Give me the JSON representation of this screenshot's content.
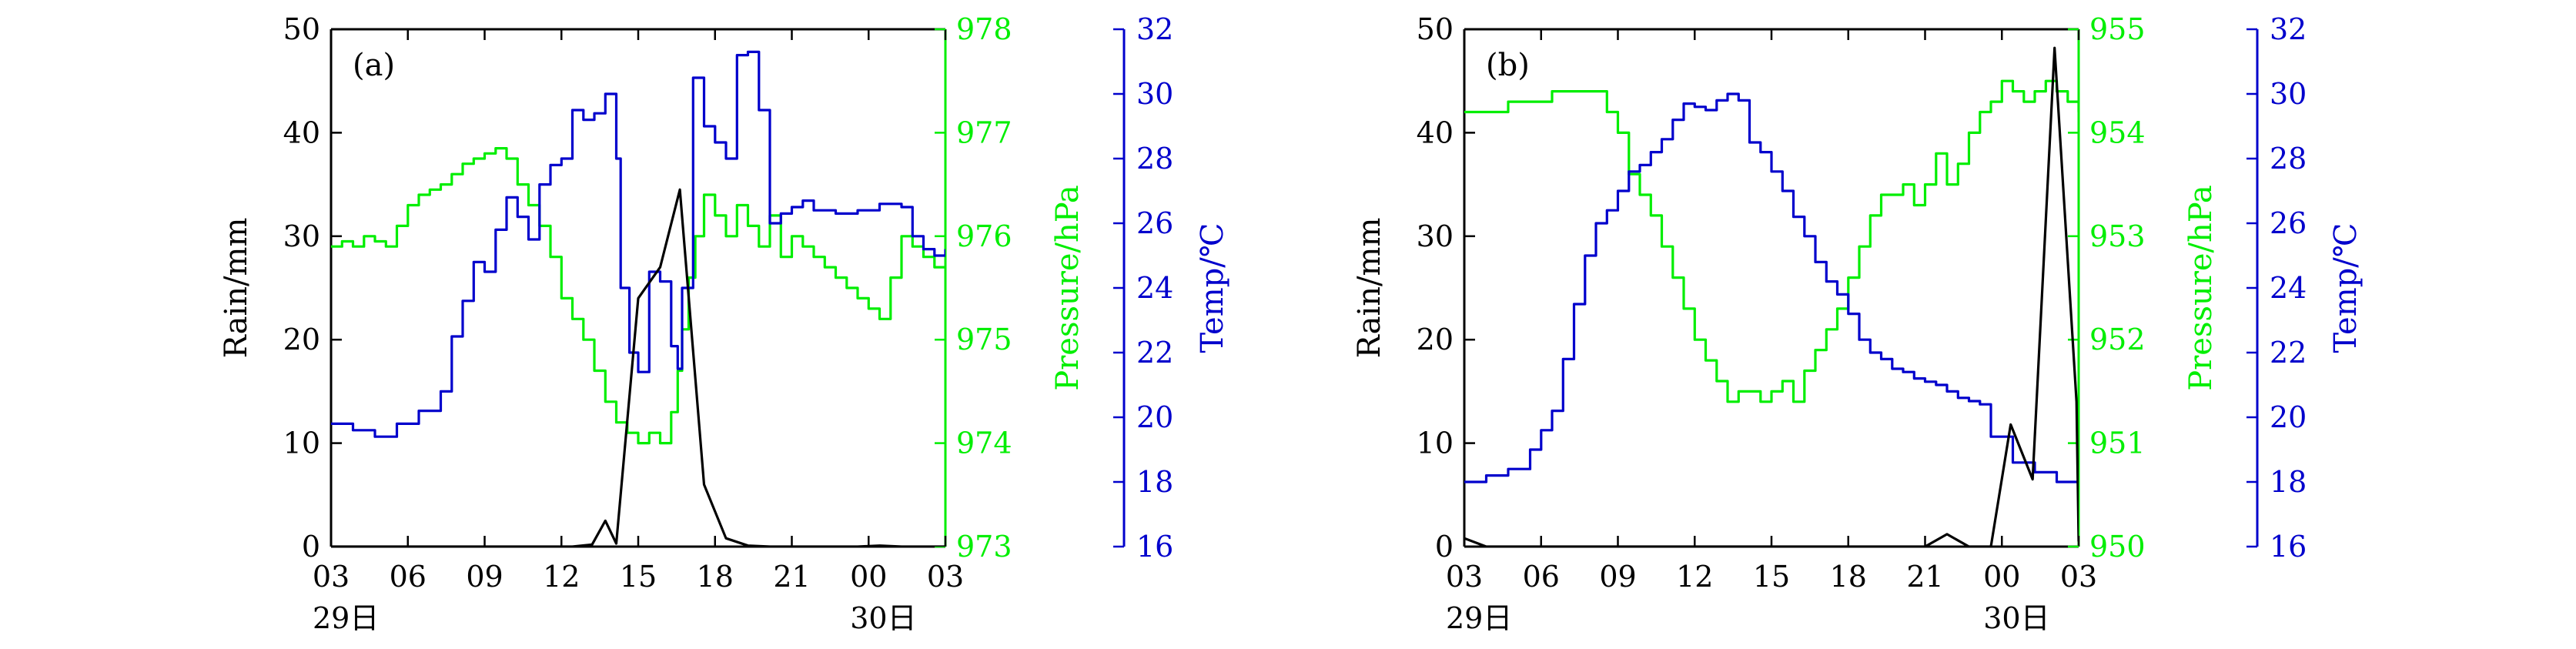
{
  "chart_data": [
    {
      "type": "line",
      "panel_label": "(a)",
      "x_ticks": [
        "03",
        "06",
        "09",
        "12",
        "15",
        "18",
        "21",
        "00",
        "03"
      ],
      "date_labels": [
        {
          "at": "03",
          "text": "29日"
        },
        {
          "at": "00",
          "text": "30日"
        }
      ],
      "xlim": [
        0,
        28
      ],
      "ylabel_left": "Rain/mm",
      "ylabel_right1": "Pressure/hPa",
      "ylabel_right2": "Temp/℃",
      "ylim_left": [
        0,
        50
      ],
      "ylim_right1": [
        973,
        978
      ],
      "ylim_right2": [
        16,
        32
      ],
      "ticks_left": [
        0,
        10,
        20,
        30,
        40,
        50
      ],
      "ticks_right1": [
        973,
        974,
        975,
        976,
        977,
        978
      ],
      "ticks_right2": [
        16,
        18,
        20,
        22,
        24,
        26,
        28,
        30,
        32
      ],
      "colors": {
        "rain": "#000000",
        "pressure": "#00ee00",
        "temp": "#0000cc"
      },
      "series": [
        {
          "key": "rain",
          "axis": "left",
          "x": [
            0,
            1,
            2,
            3,
            4,
            5,
            6,
            7,
            8,
            9,
            10,
            11,
            11.9,
            12.5,
            13,
            14,
            15,
            15.9,
            17,
            18,
            19,
            20,
            21,
            22,
            23,
            24,
            25,
            26,
            27,
            28
          ],
          "values": [
            0,
            0,
            0,
            0,
            0,
            0,
            0,
            0,
            0,
            0,
            0,
            0,
            0.2,
            2.5,
            0.3,
            24,
            27,
            34.5,
            6,
            0.8,
            0.1,
            0,
            0,
            0,
            0,
            0,
            0.1,
            0,
            0,
            0
          ]
        },
        {
          "key": "pressure",
          "axis": "right1",
          "x": [
            0,
            0.5,
            1,
            1.5,
            2,
            2.5,
            3,
            3.5,
            4,
            4.5,
            5,
            5.5,
            6,
            6.5,
            7,
            7.5,
            8,
            8.5,
            9,
            9.5,
            10,
            10.5,
            11,
            11.5,
            12,
            12.5,
            13,
            13.5,
            14,
            14.5,
            15,
            15.5,
            15.8,
            16,
            16.3,
            16.6,
            17,
            17.5,
            18,
            18.5,
            19,
            19.5,
            20,
            20.5,
            21,
            21.5,
            22,
            22.5,
            23,
            23.5,
            24,
            24.5,
            25,
            25.5,
            26,
            26.5,
            27,
            27.5,
            28
          ],
          "values": [
            975.9,
            975.95,
            975.9,
            976.0,
            975.95,
            975.9,
            976.1,
            976.3,
            976.4,
            976.45,
            976.5,
            976.6,
            976.7,
            976.75,
            976.8,
            976.85,
            976.75,
            976.5,
            976.3,
            976.1,
            975.8,
            975.4,
            975.2,
            975.0,
            974.7,
            974.4,
            974.2,
            974.1,
            974.0,
            974.1,
            974.0,
            974.3,
            974.7,
            975.1,
            975.6,
            976.0,
            976.4,
            976.2,
            976.0,
            976.3,
            976.1,
            975.9,
            976.2,
            975.8,
            976.0,
            975.9,
            975.8,
            975.7,
            975.6,
            975.5,
            975.4,
            975.3,
            975.2,
            975.6,
            976.0,
            975.9,
            975.8,
            975.7,
            975.7
          ]
        },
        {
          "key": "temp",
          "axis": "right2",
          "x": [
            0,
            1,
            2,
            3,
            4,
            5,
            5.5,
            6,
            6.5,
            7,
            7.5,
            8,
            8.5,
            9,
            9.5,
            10,
            10.5,
            11,
            11.5,
            12,
            12.5,
            13,
            13.2,
            13.6,
            14,
            14.5,
            15,
            15.5,
            15.8,
            16,
            16.5,
            17,
            17.5,
            18,
            18.5,
            19,
            19.5,
            20,
            20.5,
            21,
            21.5,
            22,
            23,
            24,
            25,
            26,
            26.5,
            27,
            27.5,
            28
          ],
          "values": [
            19.8,
            19.6,
            19.4,
            19.8,
            20.2,
            20.8,
            22.5,
            23.6,
            24.8,
            24.5,
            25.8,
            26.8,
            26.2,
            25.5,
            27.2,
            27.8,
            28.0,
            29.5,
            29.2,
            29.4,
            30.0,
            28.0,
            24.0,
            22.0,
            21.4,
            24.5,
            24.2,
            22.2,
            21.5,
            24.0,
            30.5,
            29.0,
            28.5,
            28.0,
            31.2,
            31.3,
            29.5,
            26.0,
            26.3,
            26.5,
            26.7,
            26.4,
            26.3,
            26.4,
            26.6,
            26.5,
            25.6,
            25.2,
            25.0,
            25.2
          ]
        }
      ]
    },
    {
      "type": "line",
      "panel_label": "(b)",
      "x_ticks": [
        "03",
        "06",
        "09",
        "12",
        "15",
        "18",
        "21",
        "00",
        "03"
      ],
      "date_labels": [
        {
          "at": "03",
          "text": "29日"
        },
        {
          "at": "00",
          "text": "30日"
        }
      ],
      "xlim": [
        0,
        28
      ],
      "ylabel_left": "Rain/mm",
      "ylabel_right1": "Pressure/hPa",
      "ylabel_right2": "Temp/℃",
      "ylim_left": [
        0,
        50
      ],
      "ylim_right1": [
        950,
        955
      ],
      "ylim_right2": [
        16,
        32
      ],
      "ticks_left": [
        0,
        10,
        20,
        30,
        40,
        50
      ],
      "ticks_right1": [
        950,
        951,
        952,
        953,
        954,
        955
      ],
      "ticks_right2": [
        16,
        18,
        20,
        22,
        24,
        26,
        28,
        30,
        32
      ],
      "colors": {
        "rain": "#000000",
        "pressure": "#00ee00",
        "temp": "#0000cc"
      },
      "series": [
        {
          "key": "rain",
          "axis": "left",
          "x": [
            0,
            1,
            2,
            3,
            4,
            5,
            6,
            7,
            8,
            9,
            10,
            11,
            12,
            13,
            14,
            15,
            16,
            17,
            18,
            19,
            20,
            21,
            22,
            23,
            24,
            24.9,
            25.9,
            26.9,
            27.9,
            28
          ],
          "values": [
            0.8,
            0,
            0,
            0,
            0,
            0,
            0,
            0,
            0,
            0,
            0,
            0,
            0,
            0,
            0,
            0,
            0,
            0,
            0,
            0,
            0,
            0,
            1.2,
            0,
            0,
            11.8,
            6.5,
            48.2,
            14,
            0.5
          ]
        },
        {
          "key": "pressure",
          "axis": "right1",
          "x": [
            0,
            1,
            2,
            3,
            4,
            5,
            6,
            6.5,
            7,
            7.5,
            8,
            8.5,
            9,
            9.5,
            10,
            10.5,
            11,
            11.5,
            12,
            12.5,
            13,
            13.5,
            14,
            14.5,
            15,
            15.5,
            16,
            16.5,
            17,
            17.5,
            18,
            18.5,
            19,
            19.5,
            20,
            20.5,
            21,
            21.5,
            22,
            22.5,
            23,
            23.5,
            24,
            24.5,
            25,
            25.5,
            26,
            26.5,
            27,
            27.5,
            28
          ],
          "values": [
            954.2,
            954.2,
            954.3,
            954.3,
            954.4,
            954.4,
            954.4,
            954.2,
            954.0,
            953.6,
            953.4,
            953.2,
            952.9,
            952.6,
            952.3,
            952.0,
            951.8,
            951.6,
            951.4,
            951.5,
            951.5,
            951.4,
            951.5,
            951.6,
            951.4,
            951.7,
            951.9,
            952.1,
            952.3,
            952.6,
            952.9,
            953.2,
            953.4,
            953.4,
            953.5,
            953.3,
            953.5,
            953.8,
            953.5,
            953.7,
            954.0,
            954.2,
            954.3,
            954.5,
            954.4,
            954.3,
            954.4,
            954.5,
            954.4,
            954.3,
            954.2
          ]
        },
        {
          "key": "temp",
          "axis": "right2",
          "x": [
            0,
            1,
            2,
            3,
            3.5,
            4,
            4.5,
            5,
            5.5,
            6,
            6.5,
            7,
            7.5,
            8,
            8.5,
            9,
            9.5,
            10,
            10.5,
            11,
            11.5,
            12,
            12.5,
            13,
            13.5,
            14,
            14.5,
            15,
            15.5,
            16,
            16.5,
            17,
            17.5,
            18,
            18.5,
            19,
            19.5,
            20,
            20.5,
            21,
            21.5,
            22,
            22.5,
            23,
            23.5,
            24,
            25,
            26,
            27,
            28
          ],
          "values": [
            18.0,
            18.2,
            18.4,
            19.0,
            19.6,
            20.2,
            21.8,
            23.5,
            25.0,
            26.0,
            26.4,
            27.0,
            27.6,
            27.8,
            28.2,
            28.6,
            29.2,
            29.7,
            29.6,
            29.5,
            29.8,
            30.0,
            29.8,
            28.5,
            28.2,
            27.6,
            27.0,
            26.2,
            25.6,
            24.8,
            24.2,
            23.8,
            23.2,
            22.4,
            22.0,
            21.8,
            21.5,
            21.4,
            21.2,
            21.1,
            21.0,
            20.8,
            20.6,
            20.5,
            20.4,
            19.4,
            18.6,
            18.3,
            18.0,
            18.2
          ]
        }
      ]
    }
  ]
}
